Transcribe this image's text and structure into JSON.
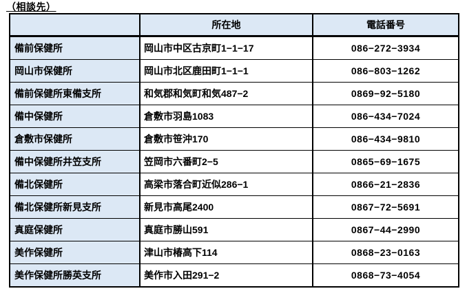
{
  "title": "（相談先）",
  "colors": {
    "header_bg": "#dce8f5",
    "border": "#000000",
    "text": "#000000"
  },
  "table": {
    "headers": [
      "",
      "所在地",
      "電話番号"
    ],
    "rows": [
      {
        "name": "備前保健所",
        "address": "岡山市中区古京町1−1−17",
        "phone": "086−272−3934"
      },
      {
        "name": "岡山市保健所",
        "address": "岡山市北区鹿田町1−1−1",
        "phone": "086−803−1262"
      },
      {
        "name": "備前保健所東備支所",
        "address": "和気郡和気町和気487−2",
        "phone": "0869−92−5180"
      },
      {
        "name": "備中保健所",
        "address": "倉敷市羽島1083",
        "phone": "086−434−7024"
      },
      {
        "name": "倉敷市保健所",
        "address": "倉敷市笹沖170",
        "phone": "086−434−9810"
      },
      {
        "name": "備中保健所井笠支所",
        "address": "笠岡市六番町2−5",
        "phone": "0865−69−1675"
      },
      {
        "name": "備北保健所",
        "address": "高梁市落合町近似286−1",
        "phone": "0866−21−2836"
      },
      {
        "name": "備北保健所新見支所",
        "address": "新見市高尾2400",
        "phone": "0867−72−5691"
      },
      {
        "name": "真庭保健所",
        "address": "真庭市勝山591",
        "phone": "0867−44−2990"
      },
      {
        "name": "美作保健所",
        "address": "津山市椿高下114",
        "phone": "0868−23−0163"
      },
      {
        "name": "美作保健所勝英支所",
        "address": "美作市入田291−2",
        "phone": "0868−73−4054"
      }
    ]
  }
}
